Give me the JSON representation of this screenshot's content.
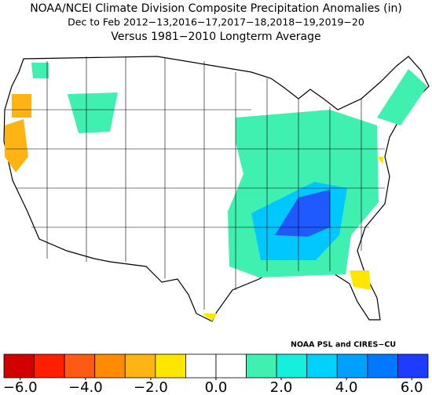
{
  "header": {
    "title": "NOAA/NCEI Climate Division Composite Precipitation Anomalies (in)",
    "subtitle": "Dec to Feb  2012−13,2016−17,2017−18,2018−19,2019−20",
    "comparison": "Versus 1981−2010 Longterm Average"
  },
  "credit": "NOAA PSL and CIRES−CU",
  "colorbar": {
    "colors": [
      "#d20000",
      "#ff1e00",
      "#ff5a14",
      "#ff8c00",
      "#ffb414",
      "#ffe600",
      "#ffffff",
      "#ffffff",
      "#40f0b0",
      "#14f0dc",
      "#00d2ff",
      "#00a0ff",
      "#0078ff",
      "#1e3cff"
    ],
    "xlim": [
      -6.5,
      6.5
    ],
    "ticks": [
      {
        "value": -6,
        "label": "−6.0"
      },
      {
        "value": -4,
        "label": "−4.0"
      },
      {
        "value": -2,
        "label": "−2.0"
      },
      {
        "value": 0,
        "label": "0.0"
      },
      {
        "value": 2,
        "label": "2.0"
      },
      {
        "value": 4,
        "label": "4.0"
      },
      {
        "value": 6,
        "label": "6.0"
      }
    ]
  }
}
